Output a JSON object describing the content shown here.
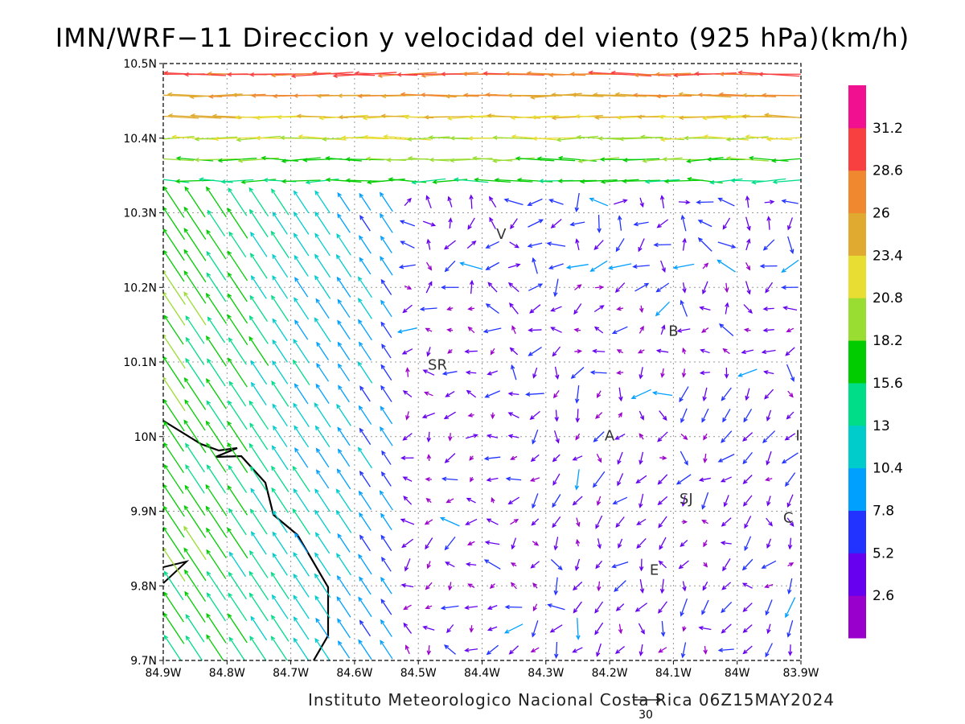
{
  "title": "IMN/WRF−11 Direccion y velocidad del viento (925 hPa)(km/h)",
  "footer": "Instituto Meteorologico Nacional Costa Rica 06Z15MAY2024",
  "reference_vector": {
    "label": "30",
    "speed": 30
  },
  "map": {
    "lon_range": [
      -84.9,
      -83.9
    ],
    "lat_range": [
      9.7,
      10.5
    ],
    "lon_ticks": [
      "84.9W",
      "84.8W",
      "84.7W",
      "84.6W",
      "84.5W",
      "84.4W",
      "84.3W",
      "84.2W",
      "84.1W",
      "84W",
      "83.9W"
    ],
    "lat_ticks": [
      "9.7N",
      "9.8N",
      "9.9N",
      "10N",
      "10.1N",
      "10.2N",
      "10.3N",
      "10.4N",
      "10.5N"
    ],
    "grid_lines": "dotted",
    "coastline_color": "#000000",
    "cities": [
      {
        "label": "V",
        "lon": -84.37,
        "lat": 10.265
      },
      {
        "label": "SR",
        "lon": -84.47,
        "lat": 10.09
      },
      {
        "label": "B",
        "lon": -84.1,
        "lat": 10.135
      },
      {
        "label": "A",
        "lon": -84.2,
        "lat": 9.995
      },
      {
        "label": "SJ",
        "lon": -84.08,
        "lat": 9.91
      },
      {
        "label": "C",
        "lon": -83.92,
        "lat": 9.885
      },
      {
        "label": "E",
        "lon": -84.13,
        "lat": 9.815
      },
      {
        "label": "I",
        "lon": -83.905,
        "lat": 9.995
      }
    ]
  },
  "colorbar": {
    "labels": [
      "2.6",
      "5.2",
      "7.8",
      "10.4",
      "13",
      "15.6",
      "18.2",
      "20.8",
      "23.4",
      "26",
      "28.6",
      "31.2"
    ],
    "colors": [
      "#9900cc",
      "#6600ee",
      "#2233ff",
      "#00a0ff",
      "#00cccc",
      "#00dd88",
      "#00cc00",
      "#99dd33",
      "#e8dd33",
      "#e0aa30",
      "#f08830",
      "#f84040",
      "#f01090"
    ]
  }
}
